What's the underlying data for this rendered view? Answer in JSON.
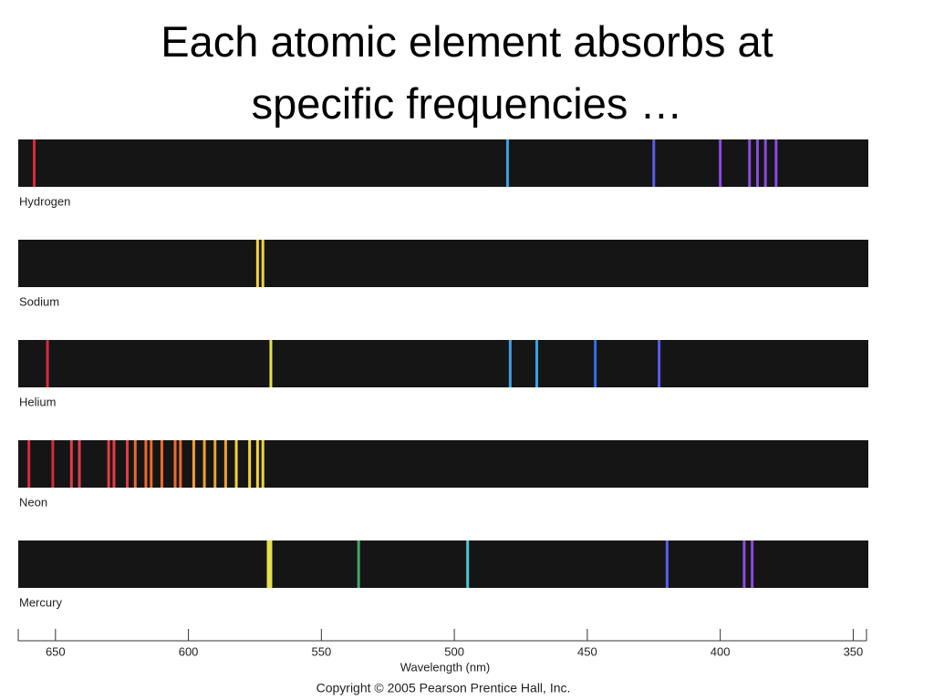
{
  "chart_data": {
    "type": "spectrum",
    "title": "Each atomic element absorbs at specific frequencies …",
    "xlabel": "Wavelength (nm)",
    "footer": "Copyright © 2005 Pearson Prentice Hall, Inc.",
    "xlim": [
      664,
      345
    ],
    "xticks": [
      650,
      600,
      550,
      500,
      450,
      400,
      350
    ],
    "series": [
      {
        "name": "Hydrogen",
        "lines": [
          658,
          480,
          425,
          400,
          389,
          386,
          383,
          379
        ]
      },
      {
        "name": "Sodium",
        "lines": [
          574,
          572
        ]
      },
      {
        "name": "Helium",
        "lines": [
          653,
          569,
          479,
          469,
          447,
          423
        ]
      },
      {
        "name": "Neon",
        "lines": [
          660,
          651,
          644,
          641,
          630,
          628,
          623,
          620,
          616,
          614,
          610,
          605,
          603,
          598,
          594,
          590,
          586,
          582,
          577,
          574,
          572
        ]
      },
      {
        "name": "Mercury",
        "lines": [
          570,
          569,
          536,
          495,
          420,
          391,
          388
        ]
      }
    ]
  }
}
